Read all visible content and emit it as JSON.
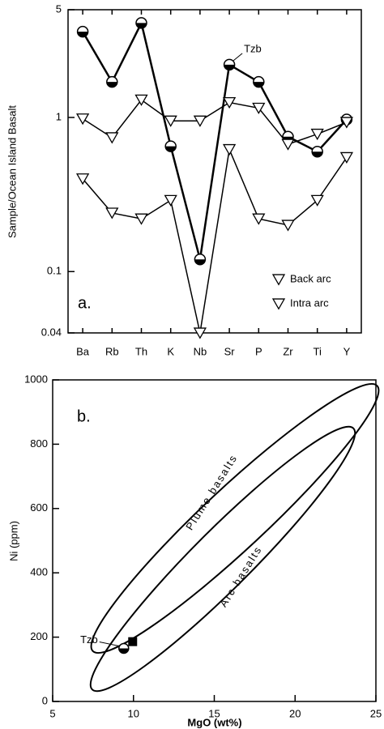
{
  "chart_data": [
    {
      "type": "line",
      "y_label": "Sample/Ocean Island Basalt",
      "annotation": "a.",
      "log_scale": true,
      "categories": [
        "Ba",
        "Rb",
        "Th",
        "K",
        "Nb",
        "Sr",
        "P",
        "Zr",
        "Ti",
        "Y"
      ],
      "ylim": [
        0.04,
        5
      ],
      "yticks": [
        0.04,
        0.1,
        1,
        5
      ],
      "series": [
        {
          "name": "Tzb",
          "color": "#000000",
          "values": [
            3.6,
            1.7,
            4.1,
            0.65,
            0.12,
            2.2,
            1.7,
            0.75,
            0.6,
            0.97
          ]
        },
        {
          "name": "Back arc",
          "color": "#000000",
          "values": [
            0.98,
            0.74,
            1.3,
            0.95,
            0.95,
            1.25,
            1.15,
            0.67,
            0.78,
            0.93
          ]
        },
        {
          "name": "Intra arc",
          "color": "#000000",
          "values": [
            0.4,
            0.24,
            0.22,
            0.29,
            0.04,
            0.62,
            0.22,
            0.2,
            0.29,
            0.55
          ]
        }
      ]
    },
    {
      "type": "scatter",
      "x_label": "MgO (wt%)",
      "y_label": "Ni (ppm)",
      "annotation": "b.",
      "fields": [
        "Plume basalts",
        "Arc basalts"
      ],
      "xlim": [
        5,
        25
      ],
      "xticks": [
        5,
        10,
        15,
        20,
        25
      ],
      "ylim": [
        0,
        1000
      ],
      "yticks": [
        0,
        200,
        400,
        600,
        800,
        1000
      ],
      "series": [
        {
          "name": "Tzb",
          "color": "#000000",
          "x": [
            9.4
          ],
          "values": [
            165
          ]
        },
        {
          "color": "#000000",
          "x": [
            9.95
          ],
          "values": [
            186
          ]
        }
      ]
    }
  ]
}
